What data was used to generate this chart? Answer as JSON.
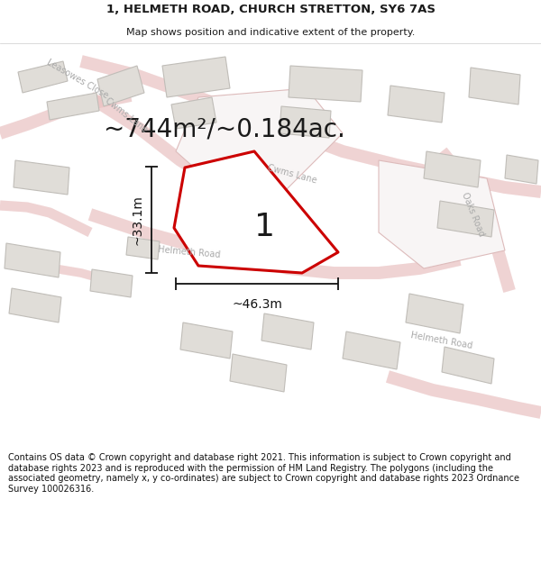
{
  "title": "1, HELMETH ROAD, CHURCH STRETTON, SY6 7AS",
  "subtitle": "Map shows position and indicative extent of the property.",
  "area_text": "~744m²/~0.184ac.",
  "label_number": "1",
  "dim_width": "~46.3m",
  "dim_height": "~33.1m",
  "footer": "Contains OS data © Crown copyright and database right 2021. This information is subject to Crown copyright and database rights 2023 and is reproduced with the permission of HM Land Registry. The polygons (including the associated geometry, namely x, y co-ordinates) are subject to Crown copyright and database rights 2023 Ordnance Survey 100026316.",
  "bg_color": "#f5f3f1",
  "map_bg": "#f8f6f4",
  "road_outline_color": "#e8b8b8",
  "road_fill_color": "#f8f0f0",
  "road_center_color": "#f0e0e0",
  "building_color": "#e0ddd8",
  "building_edge": "#c8c5c0",
  "plot_outline_color": "#cc0000",
  "plot_fill_color": "#ffffff",
  "text_color": "#1a1a1a",
  "road_label_color": "#aaaaaa",
  "dim_color": "#111111",
  "footer_color": "#111111",
  "property_outline_color": "#ddbbbb",
  "title_fontsize": 9.5,
  "subtitle_fontsize": 8,
  "area_fontsize": 20,
  "number_fontsize": 26,
  "dim_fontsize": 10,
  "road_label_fontsize": 7,
  "footer_fontsize": 7
}
